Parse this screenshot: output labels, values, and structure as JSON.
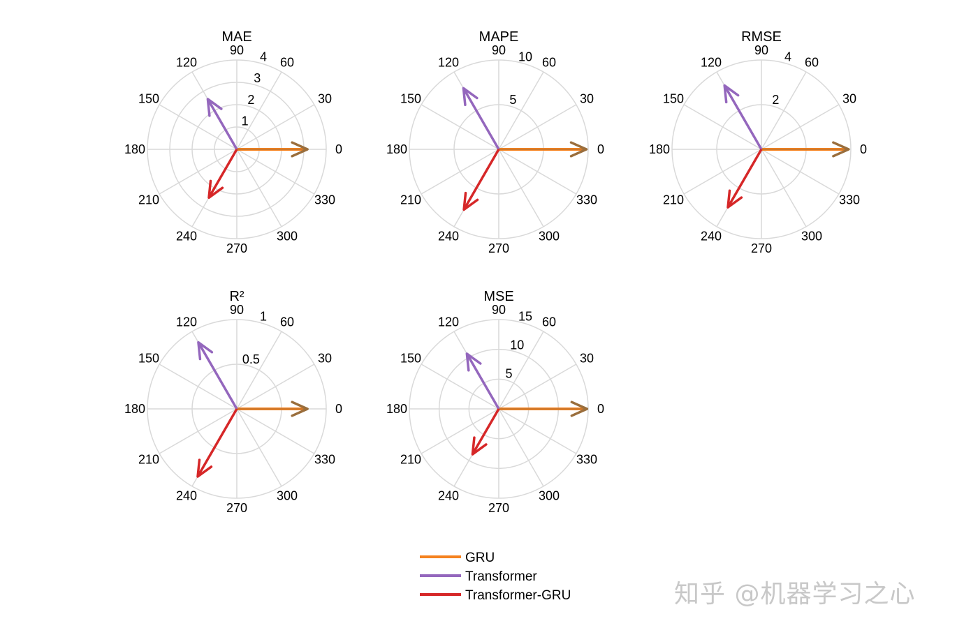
{
  "chart_data": [
    {
      "type": "polar-compass",
      "title": "MAE",
      "rmax": 4,
      "rticks": [
        1,
        2,
        3,
        4
      ],
      "theta_ticks": [
        0,
        30,
        60,
        90,
        120,
        150,
        180,
        210,
        240,
        270,
        300,
        330
      ],
      "series": [
        {
          "name": "GRU",
          "angle": 0,
          "value": 3.16
        },
        {
          "name": "Transformer",
          "angle": 120,
          "value": 2.6
        },
        {
          "name": "Transformer-GRU",
          "angle": 240,
          "value": 2.5
        }
      ]
    },
    {
      "type": "polar-compass",
      "title": "MAPE",
      "rmax": 10,
      "rticks": [
        5,
        10
      ],
      "theta_ticks": [
        0,
        30,
        60,
        90,
        120,
        150,
        180,
        210,
        240,
        270,
        300,
        330
      ],
      "series": [
        {
          "name": "GRU",
          "angle": 0,
          "value": 9.8
        },
        {
          "name": "Transformer",
          "angle": 120,
          "value": 7.9
        },
        {
          "name": "Transformer-GRU",
          "angle": 240,
          "value": 7.8
        }
      ]
    },
    {
      "type": "polar-compass",
      "title": "RMSE",
      "rmax": 4,
      "rticks": [
        2,
        4
      ],
      "theta_ticks": [
        0,
        30,
        60,
        90,
        120,
        150,
        180,
        210,
        240,
        270,
        300,
        330
      ],
      "series": [
        {
          "name": "GRU",
          "angle": 0,
          "value": 3.9
        },
        {
          "name": "Transformer",
          "angle": 120,
          "value": 3.3
        },
        {
          "name": "Transformer-GRU",
          "angle": 240,
          "value": 3.0
        }
      ]
    },
    {
      "type": "polar-compass",
      "title": "R²",
      "rmax": 1,
      "rticks": [
        0.5,
        1
      ],
      "theta_ticks": [
        0,
        30,
        60,
        90,
        120,
        150,
        180,
        210,
        240,
        270,
        300,
        330
      ],
      "series": [
        {
          "name": "GRU",
          "angle": 0,
          "value": 0.79
        },
        {
          "name": "Transformer",
          "angle": 120,
          "value": 0.86
        },
        {
          "name": "Transformer-GRU",
          "angle": 240,
          "value": 0.875
        }
      ]
    },
    {
      "type": "polar-compass",
      "title": "MSE",
      "rmax": 15,
      "rticks": [
        5,
        10,
        15
      ],
      "theta_ticks": [
        0,
        30,
        60,
        90,
        120,
        150,
        180,
        210,
        240,
        270,
        300,
        330
      ],
      "series": [
        {
          "name": "GRU",
          "angle": 0,
          "value": 14.8
        },
        {
          "name": "Transformer",
          "angle": 120,
          "value": 10.7
        },
        {
          "name": "Transformer-GRU",
          "angle": 240,
          "value": 8.8
        }
      ]
    }
  ],
  "legend": [
    {
      "name": "GRU",
      "color": "#f5821f"
    },
    {
      "name": "Transformer",
      "color": "#9467bd"
    },
    {
      "name": "Transformer-GRU",
      "color": "#d62728"
    }
  ],
  "colors": {
    "grid": "#d9d9d9",
    "GRU": "#f5821f",
    "GRU_head": "#9a6e3c",
    "Transformer": "#9467bd",
    "Transformer-GRU": "#d62728"
  },
  "watermark": "知乎 @机器学习之心"
}
